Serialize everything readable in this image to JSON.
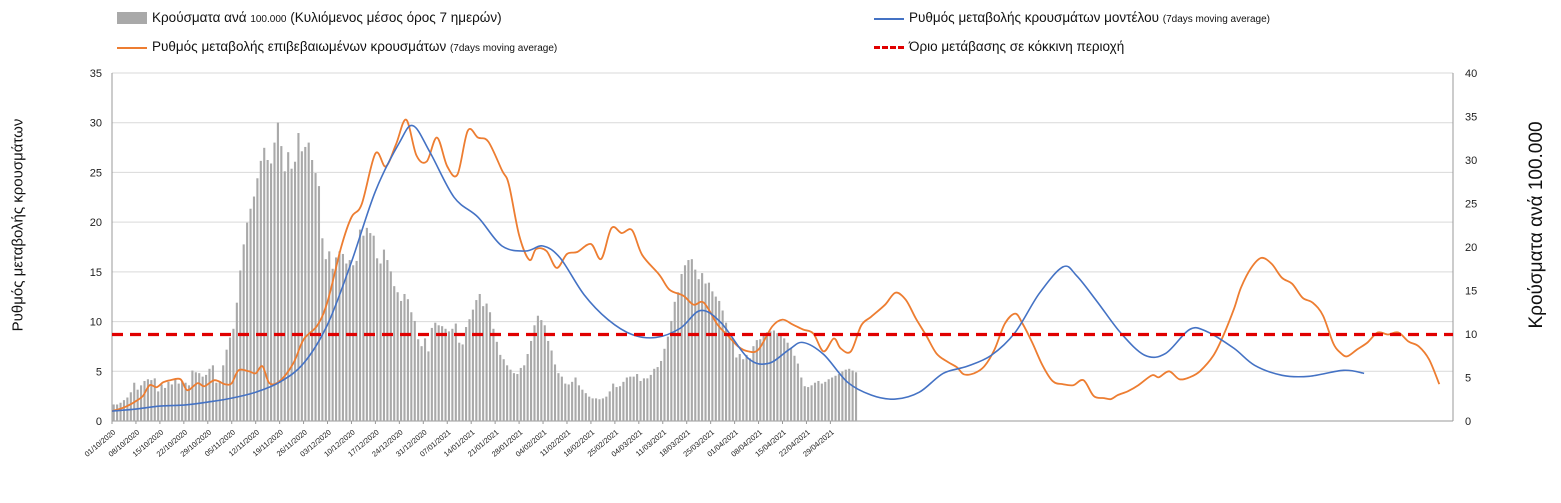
{
  "legend": {
    "bars_label": "Κρούσματα ανά",
    "bars_label_small": "100.000",
    "bars_label_rest": "(Κυλιόμενος μέσος όρος 7 ημερών)",
    "model_label": "Ρυθμός μεταβολής κρουσμάτων μοντέλου",
    "model_label_small": "(7days moving average)",
    "confirmed_label": "Ρυθμός μεταβολής επιβεβαιωμένων κρουσμάτων",
    "confirmed_label_small": "(7days moving average)",
    "threshold_label": "Όριο μετάβασης σε κόκκινη περιοχή"
  },
  "colors": {
    "bars": "#a9a9a9",
    "model": "#4472c4",
    "confirmed": "#ed7d31",
    "threshold": "#e00000",
    "grid": "#d9d9d9"
  },
  "chart_data": {
    "type": "bar",
    "xlabel": "",
    "ylabel": "Ρυθμός μεταβολής κρουσμάτων",
    "y2label": "Κρούσματα ανά 100.000",
    "ylim": [
      0,
      35
    ],
    "y2lim": [
      0,
      40
    ],
    "yticks": [
      "0",
      "5",
      "10",
      "15",
      "20",
      "25",
      "30",
      "35"
    ],
    "y2ticks": [
      "0",
      "5",
      "10",
      "15",
      "20",
      "25",
      "30",
      "35",
      "40"
    ],
    "grid": true,
    "legend_position": "top",
    "x_tick_labels": [
      "01/10/2020",
      "08/10/2020",
      "15/10/2020",
      "22/10/2020",
      "29/10/2020",
      "05/11/2020",
      "12/11/2020",
      "19/11/2020",
      "26/11/2020",
      "03/12/2020",
      "10/12/2020",
      "17/12/2020",
      "24/12/2020",
      "31/12/2020",
      "07/01/2021",
      "14/01/2021",
      "21/01/2021",
      "28/01/2021",
      "04/02/2021",
      "11/02/2021",
      "18/02/2021",
      "25/02/2021",
      "04/03/2021",
      "11/03/2021",
      "18/03/2021",
      "25/03/2021",
      "01/04/2021",
      "08/04/2021",
      "15/04/2021",
      "22/04/2021",
      "29/04/2021"
    ],
    "x_start": "01/10/2020",
    "series": [
      {
        "name": "Κρούσματα ανά 100.000 (Κυλιόμενος μέσος όρος 7 ημερών)",
        "axis": "right",
        "type": "bar",
        "values": [
          1.9,
          1.9,
          2.1,
          2.4,
          2.7,
          3.3,
          4.4,
          3.6,
          4.1,
          4.6,
          4.8,
          4.7,
          4.9,
          3.4,
          4.2,
          3.8,
          4.5,
          4.2,
          4.8,
          4.3,
          4.6,
          4.4,
          4.1,
          5.8,
          5.6,
          5.5,
          5.1,
          5.3,
          6.0,
          6.4,
          4.4,
          4.6,
          6.4,
          8.2,
          9.6,
          10.6,
          13.6,
          17.3,
          20.3,
          22.8,
          24.4,
          25.8,
          27.9,
          29.9,
          31.4,
          30.0,
          29.6,
          32.0,
          34.3,
          31.6,
          28.7,
          30.9,
          29.0,
          29.8,
          33.1,
          31.0,
          31.5,
          32.0,
          30.0,
          28.5,
          27.0,
          21.0,
          18.6,
          19.5,
          17.5,
          18.8,
          19.5,
          19.2,
          18.1,
          18.5,
          17.9,
          18.4,
          22.0,
          21.3,
          22.2,
          21.6,
          21.3,
          18.7,
          18.1,
          19.7,
          18.5,
          17.2,
          15.5,
          14.8,
          13.8,
          14.6,
          14.0,
          12.5,
          11.5,
          9.4,
          8.6,
          9.5,
          8.0,
          10.7,
          11.3,
          11.0,
          10.9,
          10.6,
          10.3,
          10.6,
          11.2,
          9.0,
          8.8,
          10.8,
          11.7,
          12.8,
          13.9,
          14.6,
          13.2,
          13.5,
          12.5,
          10.6,
          9.1,
          7.6,
          7.1,
          6.4,
          5.9,
          5.5,
          5.4,
          6.1,
          6.4,
          7.7,
          9.2,
          11.0,
          12.1,
          11.6,
          11.0,
          9.2,
          8.1,
          6.5,
          5.5,
          5.1,
          4.3,
          4.2,
          4.5,
          5.0,
          4.1,
          3.6,
          3.2,
          2.8,
          2.6,
          2.6,
          2.5,
          2.6,
          2.8,
          3.4,
          4.3,
          3.9,
          4.0,
          4.5,
          5.0,
          5.1,
          5.1,
          5.4,
          4.6,
          4.9,
          4.9,
          5.3,
          6.0,
          6.2,
          6.9,
          8.3,
          9.7,
          11.5,
          13.7,
          14.8,
          16.9,
          17.9,
          18.5,
          18.6,
          17.4,
          16.3,
          17.0,
          15.8,
          15.9,
          14.9,
          14.3,
          13.8,
          12.7,
          11.3,
          10.0,
          9.5,
          7.3,
          7.7,
          7.1,
          7.6,
          7.2,
          8.6,
          9.3,
          9.4,
          10.0,
          10.2,
          10.3,
          10.4,
          10.1,
          9.9,
          9.5,
          9.0,
          8.4,
          7.5,
          6.6,
          5.0,
          4.0,
          3.9,
          4.1,
          4.4,
          4.6,
          4.3,
          4.5,
          4.8,
          5.0,
          5.2,
          5.4,
          5.7,
          5.9,
          6.0,
          5.8,
          5.6
        ]
      },
      {
        "name": "Ρυθμός μεταβολής κρουσμάτων μοντέλου (7days moving average)",
        "axis": "left",
        "type": "line",
        "values": [
          1.0,
          1.2,
          1.5,
          1.6,
          1.9,
          2.3,
          2.9,
          3.9,
          5.8,
          9.7,
          16.0,
          23.1,
          28.0,
          29.7,
          27.0,
          22.5,
          20.5,
          17.6,
          17.1,
          17.6,
          16.4,
          12.7,
          10.2,
          8.7,
          8.4,
          9.3,
          11.1,
          9.9,
          6.3,
          5.8,
          7.2,
          7.9,
          6.7,
          3.9,
          2.6,
          2.2,
          2.9,
          4.8,
          5.5,
          6.6,
          8.9,
          12.8,
          15.5,
          14.6,
          12.0,
          8.8,
          6.6,
          6.8,
          9.2,
          9.0,
          7.3,
          5.6,
          4.6,
          4.5,
          5.1,
          4.8
        ],
        "x_days": [
          0,
          7,
          14,
          21,
          28,
          35,
          42,
          49,
          56,
          63,
          70,
          77,
          84,
          88,
          93,
          100,
          107,
          114,
          121,
          126,
          131,
          138,
          145,
          152,
          159,
          166,
          172,
          178,
          186,
          192,
          198,
          202,
          208,
          215,
          222,
          229,
          236,
          243,
          250,
          257,
          264,
          271,
          278,
          282,
          288,
          295,
          302,
          308,
          315,
          320,
          328,
          334,
          342,
          350,
          360,
          366
        ]
      },
      {
        "name": "Ρυθμός μεταβολής επιβεβαιωμένων κρουσμάτων (7days moving average)",
        "axis": "left",
        "type": "line",
        "values": [
          1.0,
          1.3,
          1.6,
          2.0,
          2.5,
          3.6,
          3.4,
          3.9,
          4.1,
          4.2,
          3.1,
          3.8,
          3.5,
          4.1,
          3.7,
          3.8,
          5.1,
          5.0,
          4.8,
          5.5,
          3.8,
          4.0,
          5.8,
          8.2,
          9.6,
          12.0,
          17.5,
          20.5,
          21.8,
          26.9,
          25.6,
          27.8,
          30.3,
          26.7,
          26.1,
          28.5,
          25.6,
          24.8,
          29.2,
          28.5,
          28.1,
          25.2,
          23.8,
          18.7,
          16.2,
          17.3,
          17.1,
          15.4,
          16.8,
          17.0,
          17.8,
          16.3,
          19.4,
          18.9,
          19.2,
          16.7,
          14.7,
          13.2,
          12.6,
          11.7,
          11.9,
          9.7,
          8.6,
          7.5,
          7.0,
          7.2,
          9.5,
          10.2,
          9.7,
          9.2,
          8.8,
          7.0,
          8.3,
          7.3,
          7.0,
          9.6,
          10.5,
          11.7,
          12.9,
          12.2,
          10.3,
          8.6,
          6.8,
          6.0,
          5.4,
          4.7,
          4.8,
          5.5,
          7.2,
          9.8,
          10.8,
          9.9,
          7.9,
          5.6,
          4.0,
          3.7,
          3.6,
          4.1,
          2.5,
          2.3,
          2.2,
          2.6,
          3.0,
          3.6,
          4.6,
          4.4,
          5.0,
          4.2,
          4.4,
          5.0,
          6.6,
          8.7,
          11.3,
          13.4,
          15.4,
          16.4,
          15.8,
          14.4,
          13.8,
          12.4,
          11.9,
          10.6,
          7.8,
          6.9,
          6.5,
          7.2,
          7.9,
          8.9,
          8.7,
          8.9,
          8.0,
          7.5,
          6.2,
          3.7
        ],
        "x_days": [
          0,
          3,
          5,
          7,
          9,
          11,
          13,
          15,
          17,
          20,
          22,
          25,
          27,
          30,
          33,
          35,
          37,
          40,
          42,
          44,
          46,
          49,
          53,
          56,
          60,
          63,
          67,
          70,
          73,
          77,
          80,
          83,
          86,
          89,
          92,
          95,
          98,
          101,
          104,
          107,
          110,
          114,
          116,
          119,
          122,
          124,
          127,
          130,
          133,
          136,
          140,
          143,
          146,
          149,
          152,
          155,
          160,
          163,
          167,
          170,
          173,
          177,
          180,
          183,
          186,
          189,
          193,
          196,
          199,
          202,
          205,
          208,
          211,
          213,
          216,
          219,
          222,
          226,
          229,
          232,
          235,
          238,
          241,
          244,
          247,
          249,
          252,
          255,
          258,
          261,
          264,
          266,
          269,
          272,
          275,
          278,
          281,
          284,
          287,
          290,
          292,
          294,
          297,
          300,
          304,
          306,
          309,
          312,
          315,
          318,
          322,
          325,
          328,
          330,
          333,
          336,
          339,
          342,
          345,
          348,
          351,
          354,
          357,
          359,
          361,
          364,
          367,
          370,
          373,
          376,
          379,
          382,
          385,
          388
        ]
      },
      {
        "name": "Όριο μετάβασης σε κόκκινη περιοχή",
        "axis": "left",
        "type": "line",
        "values": [
          8.7
        ]
      }
    ]
  }
}
